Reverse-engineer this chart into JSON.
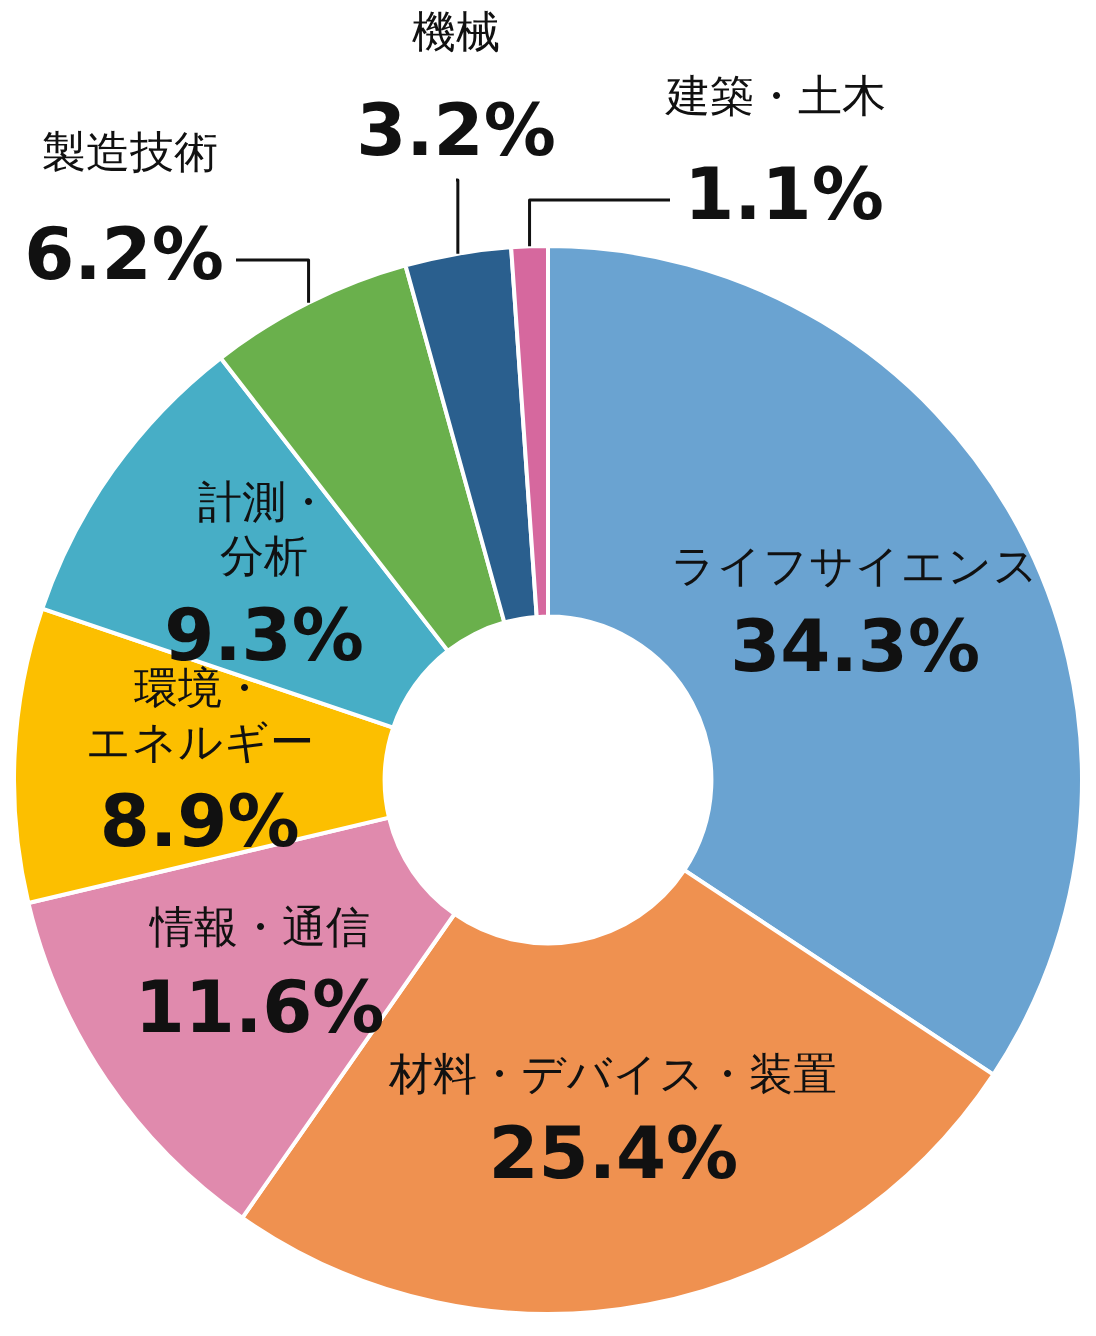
{
  "chart_data": {
    "type": "donut",
    "categories": [
      "ライフサイエンス",
      "材料・デバイス・装置",
      "情報・通信",
      "環境・エネルギー",
      "計測・分析",
      "製造技術",
      "機械",
      "建築・土木"
    ],
    "values": [
      34.3,
      25.4,
      11.6,
      8.9,
      9.3,
      6.2,
      3.2,
      1.1
    ],
    "value_labels": [
      "34.3%",
      "25.4%",
      "11.6%",
      "8.9%",
      "9.3%",
      "6.2%",
      "3.2%",
      "1.1%"
    ],
    "colors": [
      "#6aa3d1",
      "#ef9150",
      "#e08aad",
      "#fcbf00",
      "#47aec6",
      "#6ab04c",
      "#2a5f8e",
      "#d6689e"
    ]
  }
}
